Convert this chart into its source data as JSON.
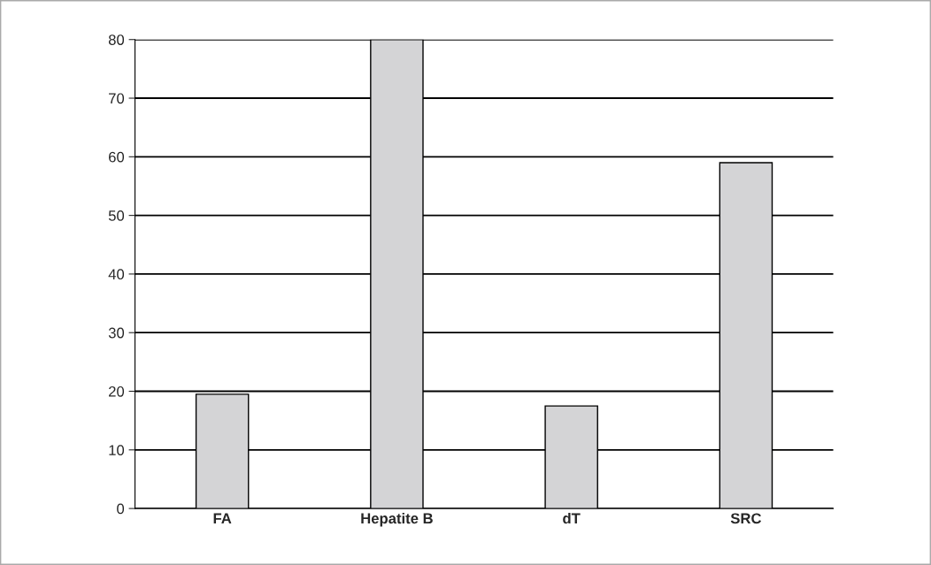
{
  "chart_data": {
    "type": "bar",
    "categories": [
      "FA",
      "Hepatite B",
      "dT",
      "SRC"
    ],
    "values": [
      19.5,
      80,
      17.5,
      59
    ],
    "color": "#d4d4d6",
    "ylim": [
      0,
      80
    ],
    "yticks": [
      0,
      10,
      20,
      30,
      40,
      50,
      60,
      70,
      80
    ],
    "grid": "y"
  }
}
